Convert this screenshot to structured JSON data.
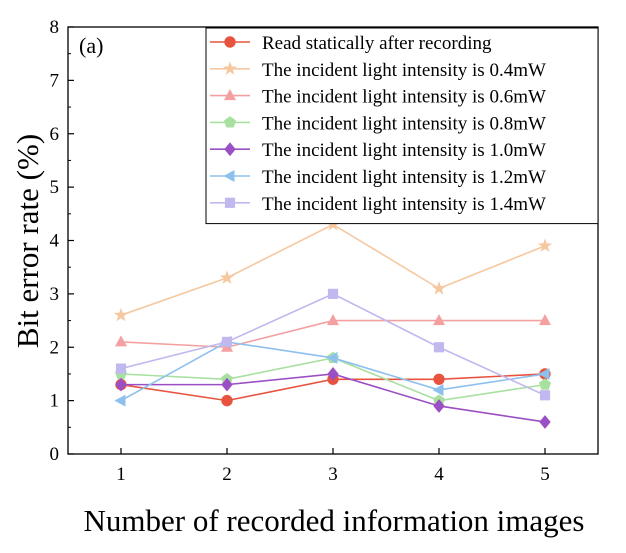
{
  "chart_data": {
    "type": "line",
    "panel_label": "(a)",
    "title": "",
    "xlabel": "Number of recorded information images",
    "ylabel": "Bit error rate (%)",
    "x": [
      1,
      2,
      3,
      4,
      5
    ],
    "xticks": [
      "1",
      "2",
      "3",
      "4",
      "5"
    ],
    "xlim": [
      0.5,
      5.5
    ],
    "ylim": [
      0,
      8
    ],
    "yticks": [
      "0",
      "1",
      "2",
      "3",
      "4",
      "5",
      "6",
      "7",
      "8"
    ],
    "grid": false,
    "legend_position": "top-right",
    "series": [
      {
        "name": "Read statically after recording",
        "color": "#e8533f",
        "marker": "circle",
        "values": [
          1.3,
          1.0,
          1.4,
          1.4,
          1.5
        ]
      },
      {
        "name": "The incident light intensity is 0.4mW",
        "color": "#f5c8a0",
        "marker": "star",
        "values": [
          2.6,
          3.3,
          4.3,
          3.1,
          3.9
        ]
      },
      {
        "name": "The incident light intensity is 0.6mW",
        "color": "#f4a0a0",
        "marker": "triangle-up",
        "values": [
          2.1,
          2.0,
          2.5,
          2.5,
          2.5
        ]
      },
      {
        "name": "The incident light intensity is 0.8mW",
        "color": "#a8e0a0",
        "marker": "pentagon",
        "values": [
          1.5,
          1.4,
          1.8,
          1.0,
          1.3
        ]
      },
      {
        "name": "The incident light intensity is 1.0mW",
        "color": "#9b4fc4",
        "marker": "diamond",
        "values": [
          1.3,
          1.3,
          1.5,
          0.9,
          0.6
        ]
      },
      {
        "name": "The incident light intensity is 1.2mW",
        "color": "#8ec0ee",
        "marker": "triangle-left",
        "values": [
          1.0,
          2.1,
          1.8,
          1.2,
          1.5
        ]
      },
      {
        "name": "The incident light intensity is 1.4mW",
        "color": "#c0b8ee",
        "marker": "square",
        "values": [
          1.6,
          2.1,
          3.0,
          2.0,
          1.1
        ]
      }
    ]
  }
}
